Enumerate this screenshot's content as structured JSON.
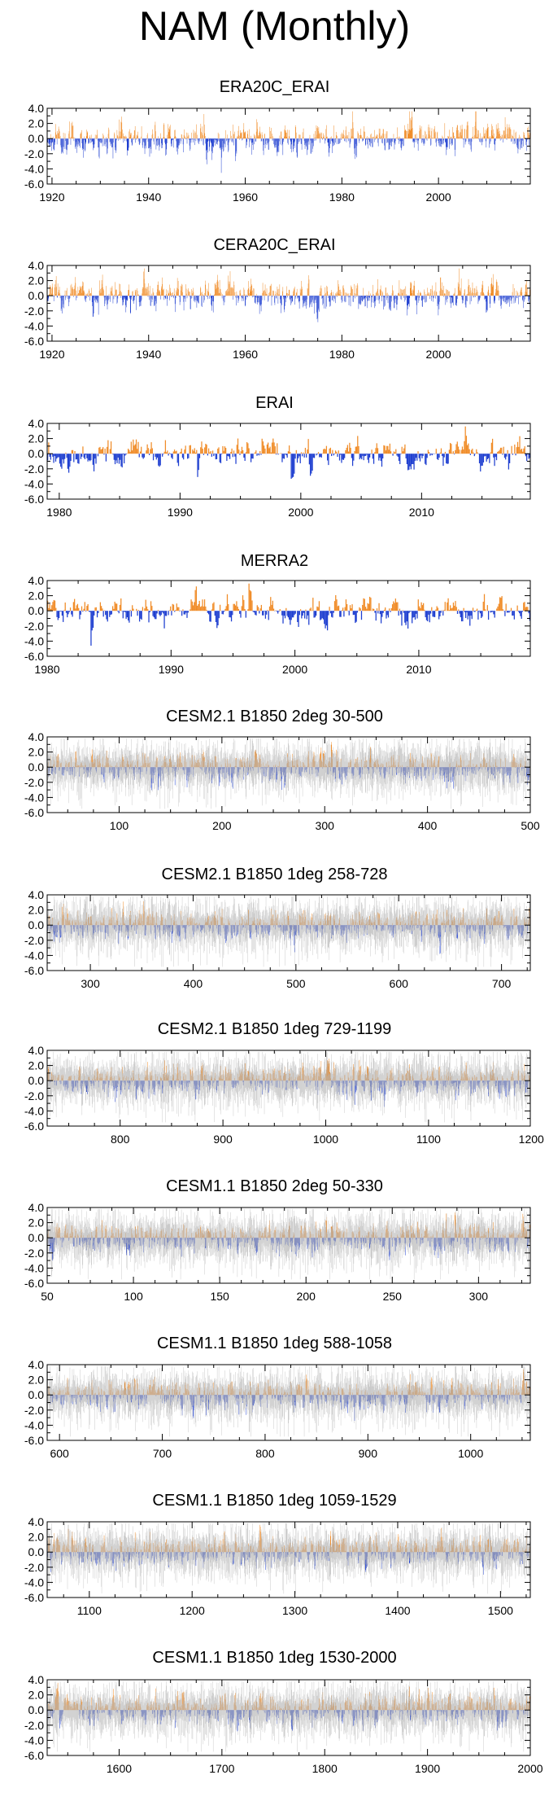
{
  "title": "NAM (Monthly)",
  "colors": {
    "positive": "#f08c28",
    "negative": "#1f3fd0",
    "ensemble": "#b4b4b4",
    "axis": "#000000"
  },
  "chart_data": [
    {
      "type": "bar",
      "title": "ERA20C_ERAI",
      "xlim": [
        1919,
        2019
      ],
      "ylim": [
        -6.0,
        4.0
      ],
      "yticks": [
        "4.0",
        "2.0",
        "0.0",
        "-2.0",
        "-4.0",
        "-6.0"
      ],
      "xticks": [
        1920,
        1940,
        1960,
        1980,
        2000
      ],
      "ensemble_spread": false,
      "seed": 11
    },
    {
      "type": "bar",
      "title": "CERA20C_ERAI",
      "xlim": [
        1919,
        2019
      ],
      "ylim": [
        -6.0,
        4.0
      ],
      "yticks": [
        "4.0",
        "2.0",
        "0.0",
        "-2.0",
        "-4.0",
        "-6.0"
      ],
      "xticks": [
        1920,
        1940,
        1960,
        1980,
        2000
      ],
      "ensemble_spread": false,
      "seed": 23
    },
    {
      "type": "bar",
      "title": "ERAI",
      "xlim": [
        1979,
        2019
      ],
      "ylim": [
        -6.0,
        4.0
      ],
      "yticks": [
        "4.0",
        "2.0",
        "0.0",
        "-2.0",
        "-4.0",
        "-6.0"
      ],
      "xticks": [
        1980,
        1990,
        2000,
        2010
      ],
      "ensemble_spread": false,
      "seed": 37
    },
    {
      "type": "bar",
      "title": "MERRA2",
      "xlim": [
        1980,
        2019
      ],
      "ylim": [
        -6.0,
        4.0
      ],
      "yticks": [
        "4.0",
        "2.0",
        "0.0",
        "-2.0",
        "-4.0",
        "-6.0"
      ],
      "xticks": [
        1980,
        1990,
        2000,
        2010
      ],
      "ensemble_spread": false,
      "seed": 41
    },
    {
      "type": "bar",
      "title": "CESM2.1 B1850 2deg 30-500",
      "xlim": [
        30,
        500
      ],
      "ylim": [
        -6.0,
        4.0
      ],
      "yticks": [
        "4.0",
        "2.0",
        "0.0",
        "-2.0",
        "-4.0",
        "-6.0"
      ],
      "xticks": [
        100,
        200,
        300,
        400,
        500
      ],
      "ensemble_spread": true,
      "seed": 53
    },
    {
      "type": "bar",
      "title": "CESM2.1 B1850 1deg 258-728",
      "xlim": [
        258,
        728
      ],
      "ylim": [
        -6.0,
        4.0
      ],
      "yticks": [
        "4.0",
        "2.0",
        "0.0",
        "-2.0",
        "-4.0",
        "-6.0"
      ],
      "xticks": [
        300,
        400,
        500,
        600,
        700
      ],
      "ensemble_spread": true,
      "seed": 67
    },
    {
      "type": "bar",
      "title": "CESM2.1 B1850 1deg 729-1199",
      "xlim": [
        729,
        1199
      ],
      "ylim": [
        -6.0,
        4.0
      ],
      "yticks": [
        "4.0",
        "2.0",
        "0.0",
        "-2.0",
        "-4.0",
        "-6.0"
      ],
      "xticks": [
        800,
        900,
        1000,
        1100,
        1200
      ],
      "ensemble_spread": true,
      "seed": 71
    },
    {
      "type": "bar",
      "title": "CESM1.1 B1850 2deg 50-330",
      "xlim": [
        50,
        330
      ],
      "ylim": [
        -6.0,
        4.0
      ],
      "yticks": [
        "4.0",
        "2.0",
        "0.0",
        "-2.0",
        "-4.0",
        "-6.0"
      ],
      "xticks": [
        50,
        100,
        150,
        200,
        250,
        300
      ],
      "ensemble_spread": true,
      "seed": 83
    },
    {
      "type": "bar",
      "title": "CESM1.1 B1850 1deg 588-1058",
      "xlim": [
        588,
        1058
      ],
      "ylim": [
        -6.0,
        4.0
      ],
      "yticks": [
        "4.0",
        "2.0",
        "0.0",
        "-2.0",
        "-4.0",
        "-6.0"
      ],
      "xticks": [
        600,
        700,
        800,
        900,
        1000
      ],
      "ensemble_spread": true,
      "seed": 97
    },
    {
      "type": "bar",
      "title": "CESM1.1 B1850 1deg 1059-1529",
      "xlim": [
        1059,
        1529
      ],
      "ylim": [
        -6.0,
        4.0
      ],
      "yticks": [
        "4.0",
        "2.0",
        "0.0",
        "-2.0",
        "-4.0",
        "-6.0"
      ],
      "xticks": [
        1100,
        1200,
        1300,
        1400,
        1500
      ],
      "ensemble_spread": true,
      "seed": 101
    },
    {
      "type": "bar",
      "title": "CESM1.1 B1850 1deg 1530-2000",
      "xlim": [
        1530,
        2000
      ],
      "ylim": [
        -6.0,
        4.0
      ],
      "yticks": [
        "4.0",
        "2.0",
        "0.0",
        "-2.0",
        "-4.0",
        "-6.0"
      ],
      "xticks": [
        1600,
        1700,
        1800,
        1900,
        2000
      ],
      "ensemble_spread": true,
      "seed": 113
    }
  ]
}
